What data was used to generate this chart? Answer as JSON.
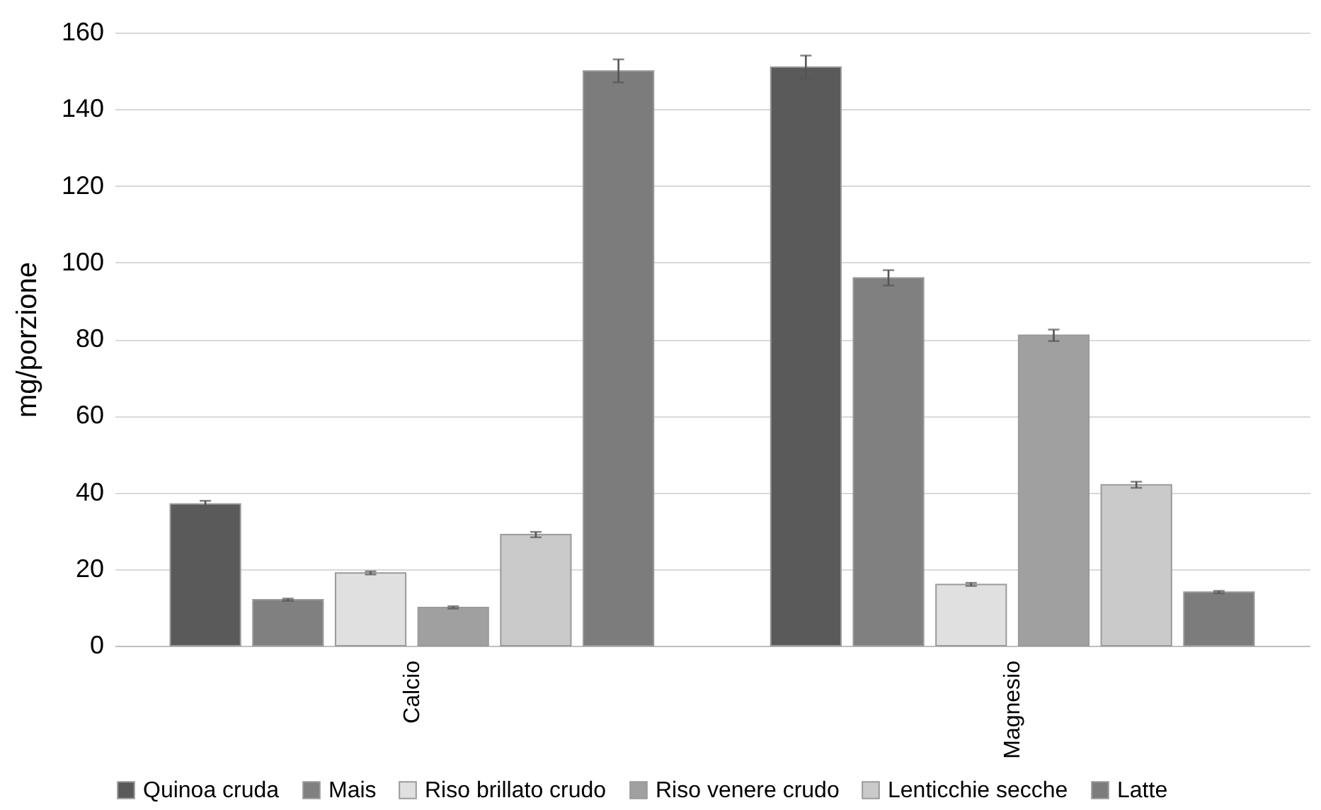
{
  "chart_data": {
    "type": "bar",
    "ylabel": "mg/porzione",
    "categories": [
      "Calcio",
      "Magnesio"
    ],
    "series": [
      {
        "name": "Quinoa cruda",
        "color": "#5a5a5a",
        "values": [
          37,
          151
        ],
        "errors": [
          0.8,
          3
        ]
      },
      {
        "name": "Mais",
        "color": "#808080",
        "values": [
          12,
          96
        ],
        "errors": [
          0.3,
          2
        ]
      },
      {
        "name": "Riso brillato crudo",
        "color": "#e0e0e0",
        "values": [
          19,
          16
        ],
        "errors": [
          0.4,
          0.4
        ]
      },
      {
        "name": "Riso venere crudo",
        "color": "#a0a0a0",
        "values": [
          10,
          81
        ],
        "errors": [
          0.3,
          1.5
        ]
      },
      {
        "name": "Lenticchie secche",
        "color": "#cacaca",
        "values": [
          29,
          42
        ],
        "errors": [
          0.7,
          0.8
        ]
      },
      {
        "name": "Latte",
        "color": "#7c7c7c",
        "values": [
          150,
          14
        ],
        "errors": [
          3,
          0.3
        ]
      }
    ],
    "ylim": [
      0,
      160
    ],
    "yticks": [
      0,
      20,
      40,
      60,
      80,
      100,
      120,
      140,
      160
    ],
    "grid": "y",
    "legend": "bottom"
  }
}
